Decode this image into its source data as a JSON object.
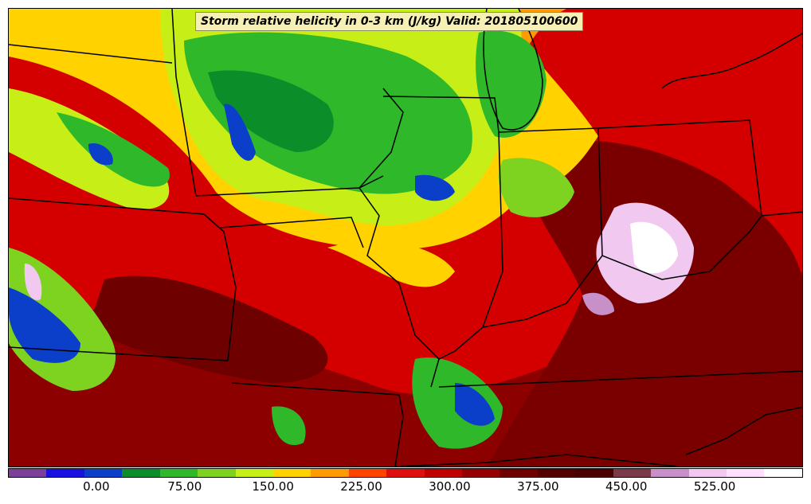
{
  "title": "Storm relative helicity in 0-3 km (J/kg) Valid: 201805100600",
  "colorbar": {
    "colors": [
      "#7b3f99",
      "#1a10e0",
      "#0b3ec9",
      "#0b8e2a",
      "#2fb82a",
      "#7ed321",
      "#c8ee18",
      "#ffd200",
      "#ff9a00",
      "#ff4400",
      "#e00f0f",
      "#c00000",
      "#960000",
      "#6e0000",
      "#540000",
      "#4a0000",
      "#7a3a4a",
      "#c890c8",
      "#f0c8f0",
      "#ffe0ff",
      "#ffffff"
    ],
    "tick_labels": [
      "0.00",
      "75.00",
      "150.00",
      "225.00",
      "300.00",
      "375.00",
      "450.00",
      "525.00"
    ],
    "tick_values": [
      0,
      75,
      150,
      225,
      300,
      375,
      450,
      525
    ],
    "min": -75,
    "max": 600
  },
  "map": {
    "region": "Central United States",
    "field": "Storm relative helicity 0-3 km",
    "units": "J/kg",
    "valid_time": "201805100600"
  }
}
